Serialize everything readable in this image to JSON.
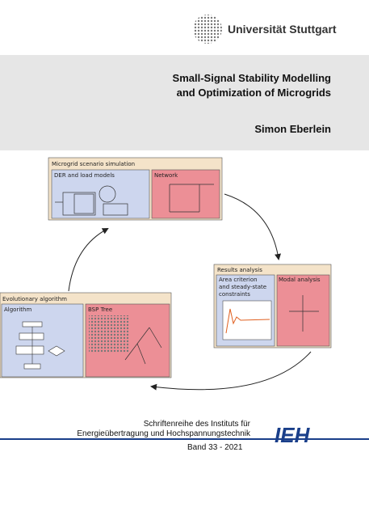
{
  "header": {
    "university": "Universität Stuttgart"
  },
  "title": {
    "line1": "Small-Signal Stability Modelling",
    "line2": "and Optimization of Microgrids"
  },
  "author": "Simon Eberlein",
  "diagram": {
    "microgrid": {
      "title": "Microgrid scenario simulation",
      "left": "DER and load models",
      "right": "Network"
    },
    "results": {
      "title": "Results analysis",
      "left_lines": [
        "Area criterion",
        "and steady-state",
        "constraints"
      ],
      "right": "Modal analysis"
    },
    "evolution": {
      "title": "Evolutionary algorithm",
      "left": "Algorithm",
      "right": "BSP Tree"
    }
  },
  "series_info": {
    "line1": "Schriftenreihe des Instituts für",
    "line2": "Energieübertragung und Hochspannungstechnik",
    "logo": "IEH",
    "volume": "Band 33 - 2021"
  }
}
